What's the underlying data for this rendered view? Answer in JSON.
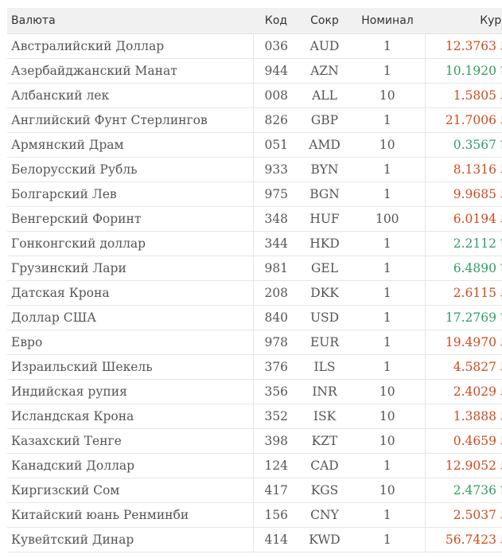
{
  "table": {
    "headers": {
      "name": "Валюта",
      "code": "Код",
      "abbr": "Сокр",
      "nominal": "Номинал",
      "rate": "Курс"
    },
    "colors": {
      "down": "#d04a1e",
      "up": "#2f9e62"
    },
    "rows": [
      {
        "name": "Австралийский Доллар",
        "code": "036",
        "abbr": "AUD",
        "nominal": "1",
        "rate": "12.3763",
        "trend": "down",
        "arrow": "↓"
      },
      {
        "name": "Азербайджанский Манат",
        "code": "944",
        "abbr": "AZN",
        "nominal": "1",
        "rate": "10.1920",
        "trend": "up",
        "arrow": "↑"
      },
      {
        "name": "Албанский лек",
        "code": "008",
        "abbr": "ALL",
        "nominal": "10",
        "rate": "1.5805",
        "trend": "down",
        "arrow": "↓"
      },
      {
        "name": "Английский Фунт Стерлингов",
        "code": "826",
        "abbr": "GBP",
        "nominal": "1",
        "rate": "21.7006",
        "trend": "down",
        "arrow": "↓"
      },
      {
        "name": "Армянский Драм",
        "code": "051",
        "abbr": "AMD",
        "nominal": "10",
        "rate": "0.3567",
        "trend": "up",
        "arrow": "↑"
      },
      {
        "name": "Белорусский Рубль",
        "code": "933",
        "abbr": "BYN",
        "nominal": "1",
        "rate": "8.1316",
        "trend": "down",
        "arrow": "↓"
      },
      {
        "name": "Болгарский Лев",
        "code": "975",
        "abbr": "BGN",
        "nominal": "1",
        "rate": "9.9685",
        "trend": "down",
        "arrow": "↓"
      },
      {
        "name": "Венгерский Форинт",
        "code": "348",
        "abbr": "HUF",
        "nominal": "100",
        "rate": "6.0194",
        "trend": "down",
        "arrow": "↓"
      },
      {
        "name": "Гонконгский доллар",
        "code": "344",
        "abbr": "HKD",
        "nominal": "1",
        "rate": "2.2112",
        "trend": "up",
        "arrow": "↑"
      },
      {
        "name": "Грузинский Лари",
        "code": "981",
        "abbr": "GEL",
        "nominal": "1",
        "rate": "6.4890",
        "trend": "up",
        "arrow": "↑"
      },
      {
        "name": "Датская Крона",
        "code": "208",
        "abbr": "DKK",
        "nominal": "1",
        "rate": "2.6115",
        "trend": "down",
        "arrow": "↓"
      },
      {
        "name": "Доллар США",
        "code": "840",
        "abbr": "USD",
        "nominal": "1",
        "rate": "17.2769",
        "trend": "up",
        "arrow": "↑"
      },
      {
        "name": "Евро",
        "code": "978",
        "abbr": "EUR",
        "nominal": "1",
        "rate": "19.4970",
        "trend": "down",
        "arrow": "↓"
      },
      {
        "name": "Израильский Шекель",
        "code": "376",
        "abbr": "ILS",
        "nominal": "1",
        "rate": "4.5827",
        "trend": "down",
        "arrow": "↓"
      },
      {
        "name": "Индийская рупия",
        "code": "356",
        "abbr": "INR",
        "nominal": "10",
        "rate": "2.4029",
        "trend": "down",
        "arrow": "↓"
      },
      {
        "name": "Исландская Крона",
        "code": "352",
        "abbr": "ISK",
        "nominal": "10",
        "rate": "1.3888",
        "trend": "down",
        "arrow": "↓"
      },
      {
        "name": "Казахский Тенге",
        "code": "398",
        "abbr": "KZT",
        "nominal": "10",
        "rate": "0.4659",
        "trend": "down",
        "arrow": "↓"
      },
      {
        "name": "Канадский Доллар",
        "code": "124",
        "abbr": "CAD",
        "nominal": "1",
        "rate": "12.9052",
        "trend": "down",
        "arrow": "↓"
      },
      {
        "name": "Киргизский Сом",
        "code": "417",
        "abbr": "KGS",
        "nominal": "10",
        "rate": "2.4736",
        "trend": "up",
        "arrow": "↑"
      },
      {
        "name": "Китайский юань Ренминби",
        "code": "156",
        "abbr": "CNY",
        "nominal": "1",
        "rate": "2.5037",
        "trend": "down",
        "arrow": "↓"
      },
      {
        "name": "Кувейтский Динар",
        "code": "414",
        "abbr": "KWD",
        "nominal": "1",
        "rate": "56.7423",
        "trend": "down",
        "arrow": "↓"
      }
    ]
  }
}
